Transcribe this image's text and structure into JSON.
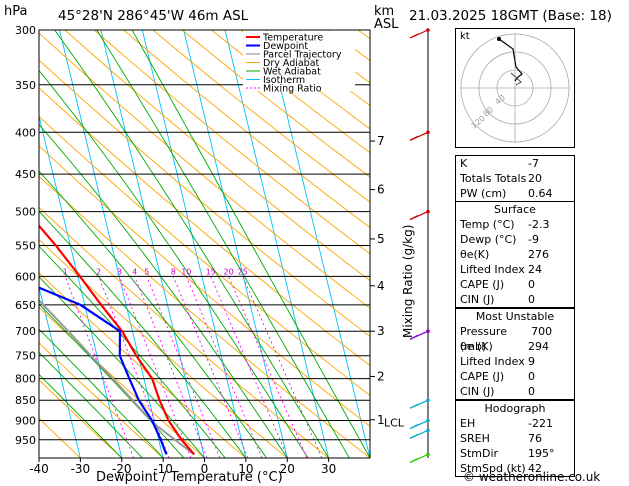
{
  "header": {
    "hpa_label": "hPa",
    "location": "45°28'N  286°45'W  46m  ASL",
    "km_label": "km",
    "asl_label": "ASL",
    "datetime": "21.03.2025  18GMT  (Base: 18)"
  },
  "chart_data": {
    "type": "skew-t",
    "xlabel": "Dewpoint / Temperature (°C)",
    "ylabel_right": "Mixing Ratio (g/kg)",
    "x_ticks": [
      -40,
      -30,
      -20,
      -10,
      0,
      10,
      20,
      30
    ],
    "xlim": [
      -40,
      40
    ],
    "pressure_levels": [
      300,
      350,
      400,
      450,
      500,
      550,
      600,
      650,
      700,
      750,
      800,
      850,
      900,
      950
    ],
    "plim": [
      300,
      1000
    ],
    "km_ticks": [
      {
        "label": "7",
        "p": 410
      },
      {
        "label": "6",
        "p": 470
      },
      {
        "label": "5",
        "p": 540
      },
      {
        "label": "4",
        "p": 616
      },
      {
        "label": "3",
        "p": 700
      },
      {
        "label": "2",
        "p": 795
      },
      {
        "label": "1",
        "p": 898
      }
    ],
    "lcl_label": "LCL",
    "lcl_p": 905,
    "mixing_ratio_labels": [
      "1",
      "2",
      "3",
      "4",
      "5",
      "8",
      "10",
      "15",
      "20",
      "25"
    ],
    "legend": [
      "Temperature",
      "Dewpoint",
      "Parcel Trajectory",
      "Dry Adiabat",
      "Wet Adiabat",
      "Isotherm",
      "Mixing Ratio"
    ],
    "legend_colors": [
      "#ff0000",
      "#0000ff",
      "#808080",
      "#ffa500",
      "#00aa00",
      "#00c0ff",
      "#ff00ff"
    ],
    "temperature": [
      {
        "p": 990,
        "t": -2.3
      },
      {
        "p": 950,
        "t": -4.5
      },
      {
        "p": 900,
        "t": -6.5
      },
      {
        "p": 850,
        "t": -7.5
      },
      {
        "p": 800,
        "t": -8.0
      },
      {
        "p": 750,
        "t": -10.5
      },
      {
        "p": 700,
        "t": -12.5
      },
      {
        "p": 650,
        "t": -16.0
      },
      {
        "p": 600,
        "t": -19.5
      },
      {
        "p": 550,
        "t": -23.5
      },
      {
        "p": 500,
        "t": -28.5
      },
      {
        "p": 450,
        "t": -33.0
      },
      {
        "p": 400,
        "t": -40.0
      },
      {
        "p": 350,
        "t": -47.0
      },
      {
        "p": 300,
        "t": -55.0
      }
    ],
    "dewpoint": [
      {
        "p": 990,
        "t": -9.0
      },
      {
        "p": 950,
        "t": -9.5
      },
      {
        "p": 900,
        "t": -10.5
      },
      {
        "p": 850,
        "t": -12.5
      },
      {
        "p": 800,
        "t": -13.5
      },
      {
        "p": 750,
        "t": -14.5
      },
      {
        "p": 700,
        "t": -13.0
      },
      {
        "p": 650,
        "t": -21.0
      },
      {
        "p": 600,
        "t": -36.0
      },
      {
        "p": 550,
        "t": -45.0
      },
      {
        "p": 500,
        "t": -44.0
      },
      {
        "p": 450,
        "t": -35.0
      },
      {
        "p": 400,
        "t": -40.5
      },
      {
        "p": 350,
        "t": -48.0
      },
      {
        "p": 300,
        "t": -56.0
      }
    ],
    "parcel": [
      {
        "p": 990,
        "t": -2.3
      },
      {
        "p": 905,
        "t": -10.5
      },
      {
        "p": 850,
        "t": -14.0
      },
      {
        "p": 800,
        "t": -17.5
      },
      {
        "p": 750,
        "t": -21.5
      },
      {
        "p": 700,
        "t": -25.5
      },
      {
        "p": 650,
        "t": -30.0
      },
      {
        "p": 600,
        "t": -35.0
      },
      {
        "p": 550,
        "t": -40.5
      },
      {
        "p": 500,
        "t": -46.5
      },
      {
        "p": 450,
        "t": -53.0
      },
      {
        "p": 400,
        "t": -60.0
      },
      {
        "p": 350,
        "t": -68.0
      },
      {
        "p": 300,
        "t": -76.0
      }
    ],
    "wind_barb_levels": [
      300,
      400,
      500,
      700,
      850,
      900,
      925,
      990
    ],
    "wind_barb_colors": [
      "#cc0000",
      "#cc0000",
      "#cc0000",
      "#8800cc",
      "#00aacc",
      "#00aacc",
      "#00aacc",
      "#33cc00"
    ]
  },
  "hodograph": {
    "unit_label": "kt",
    "ring_labels": [
      "120",
      "80",
      "40"
    ]
  },
  "indices": {
    "top": [
      {
        "label": "K",
        "value": "-7"
      },
      {
        "label": "Totals Totals",
        "value": "20"
      },
      {
        "label": "PW (cm)",
        "value": "0.64"
      }
    ],
    "surface_title": "Surface",
    "surface": [
      {
        "label": "Temp (°C)",
        "value": "-2.3"
      },
      {
        "label": "Dewp (°C)",
        "value": "-9"
      },
      {
        "label": "θe(K)",
        "value": "276"
      },
      {
        "label": "Lifted Index",
        "value": "24"
      },
      {
        "label": "CAPE (J)",
        "value": "0"
      },
      {
        "label": "CIN (J)",
        "value": "0"
      }
    ],
    "mu_title": "Most Unstable",
    "mu": [
      {
        "label": "Pressure (mb)",
        "value": "700"
      },
      {
        "label": "θe (K)",
        "value": "294"
      },
      {
        "label": "Lifted Index",
        "value": "9"
      },
      {
        "label": "CAPE (J)",
        "value": "0"
      },
      {
        "label": "CIN (J)",
        "value": "0"
      }
    ],
    "hodo_title": "Hodograph",
    "hodo": [
      {
        "label": "EH",
        "value": "-221"
      },
      {
        "label": "SREH",
        "value": "76"
      },
      {
        "label": "StmDir",
        "value": "195°"
      },
      {
        "label": "StmSpd (kt)",
        "value": "42"
      }
    ]
  },
  "footer": "© weatheronline.co.uk"
}
